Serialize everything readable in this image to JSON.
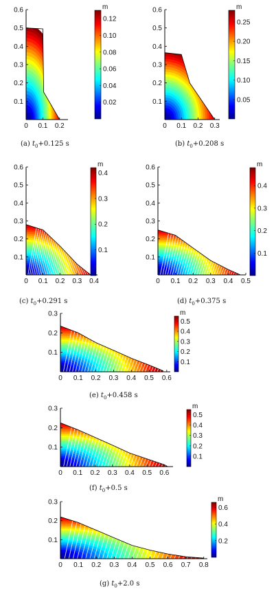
{
  "chart_data": [
    {
      "type": "area",
      "caption": "(a) t0+0.125 s",
      "caption_prefix": "(a)",
      "caption_suffix": "+0.125 s",
      "x_ticks": [
        "0",
        "0.1",
        "0.2"
      ],
      "y_ticks": [
        "0.1",
        "0.2",
        "0.3",
        "0.4",
        "0.5",
        "0.6"
      ],
      "xlim": [
        0,
        0.25
      ],
      "ylim": [
        0,
        0.6
      ],
      "colorbar_label": "m",
      "colorbar_range": [
        0,
        0.13
      ],
      "colorbar_ticks": [
        "0.02",
        "0.04",
        "0.06",
        "0.08",
        "0.10",
        "0.12"
      ],
      "colorbar_tick_values": [
        0.02,
        0.04,
        0.06,
        0.08,
        0.1,
        0.12
      ],
      "outline": [
        [
          0,
          0.5
        ],
        [
          0.1,
          0.495
        ],
        [
          0.105,
          0.15
        ],
        [
          0.2,
          0
        ]
      ],
      "streaks": false
    },
    {
      "type": "area",
      "caption": "(b) t0+0.208 s",
      "caption_prefix": "(b)",
      "caption_suffix": "+0.208 s",
      "x_ticks": [
        "0",
        "0.1",
        "0.2",
        "0.3"
      ],
      "y_ticks": [
        "0.1",
        "0.2",
        "0.3",
        "0.4",
        "0.5",
        "0.6"
      ],
      "xlim": [
        0,
        0.33
      ],
      "ylim": [
        0,
        0.6
      ],
      "colorbar_label": "m",
      "colorbar_range": [
        0,
        0.28
      ],
      "colorbar_ticks": [
        "0.05",
        "0.10",
        "0.15",
        "0.20",
        "0.25"
      ],
      "colorbar_tick_values": [
        0.05,
        0.1,
        0.15,
        0.2,
        0.25
      ],
      "outline": [
        [
          0,
          0.365
        ],
        [
          0.1,
          0.355
        ],
        [
          0.15,
          0.2
        ],
        [
          0.3,
          0
        ]
      ],
      "streaks": false
    },
    {
      "type": "area",
      "caption": "(c) t0+0.291 s",
      "caption_prefix": "(c)",
      "caption_suffix": "+0.291 s",
      "x_ticks": [
        "0",
        "0.1",
        "0.2",
        "0.3",
        "0.4"
      ],
      "y_ticks": [
        "0.1",
        "0.2",
        "0.3",
        "0.4",
        "0.5",
        "0.6"
      ],
      "xlim": [
        0,
        0.42
      ],
      "ylim": [
        0,
        0.6
      ],
      "colorbar_label": "m",
      "colorbar_range": [
        0,
        0.42
      ],
      "colorbar_ticks": [
        "0.1",
        "0.2",
        "0.3",
        "0.4"
      ],
      "colorbar_tick_values": [
        0.1,
        0.2,
        0.3,
        0.4
      ],
      "outline": [
        [
          0,
          0.28
        ],
        [
          0.1,
          0.25
        ],
        [
          0.2,
          0.16
        ],
        [
          0.3,
          0.06
        ],
        [
          0.38,
          0
        ]
      ],
      "streaks": true
    },
    {
      "type": "area",
      "caption": "(d) t0+0.375 s",
      "caption_prefix": "(d)",
      "caption_suffix": "+0.375 s",
      "x_ticks": [
        "0",
        "0.1",
        "0.2",
        "0.3",
        "0.4",
        "0.5"
      ],
      "y_ticks": [
        "0.1",
        "0.2",
        "0.3",
        "0.4",
        "0.5",
        "0.6"
      ],
      "xlim": [
        0,
        0.5
      ],
      "ylim": [
        0,
        0.6
      ],
      "colorbar_label": "m",
      "colorbar_range": [
        0,
        0.48
      ],
      "colorbar_ticks": [
        "0.1",
        "0.2",
        "0.3",
        "0.4"
      ],
      "colorbar_tick_values": [
        0.1,
        0.2,
        0.3,
        0.4
      ],
      "outline": [
        [
          0,
          0.25
        ],
        [
          0.1,
          0.22
        ],
        [
          0.2,
          0.15
        ],
        [
          0.3,
          0.08
        ],
        [
          0.4,
          0.03
        ],
        [
          0.47,
          0
        ]
      ],
      "streaks": true
    },
    {
      "type": "area",
      "caption": "(e) t0+0.458 s",
      "caption_prefix": "(e)",
      "caption_suffix": "+0.458 s",
      "x_ticks": [
        "0",
        "0.1",
        "0.2",
        "0.3",
        "0.4",
        "0.5",
        "0.6"
      ],
      "y_ticks": [
        "0.1",
        "0.2",
        "0.3"
      ],
      "xlim": [
        0,
        0.62
      ],
      "ylim": [
        0,
        0.3
      ],
      "colorbar_label": "m",
      "colorbar_range": [
        0,
        0.55
      ],
      "colorbar_ticks": [
        "0.1",
        "0.2",
        "0.3",
        "0.4",
        "0.5"
      ],
      "colorbar_tick_values": [
        0.1,
        0.2,
        0.3,
        0.4,
        0.5
      ],
      "outline": [
        [
          0,
          0.235
        ],
        [
          0.1,
          0.2
        ],
        [
          0.2,
          0.15
        ],
        [
          0.3,
          0.11
        ],
        [
          0.4,
          0.07
        ],
        [
          0.5,
          0.035
        ],
        [
          0.58,
          0.005
        ]
      ],
      "streaks": true
    },
    {
      "type": "area",
      "caption": "(f) t0+0.5 s",
      "caption_prefix": "(f)",
      "caption_suffix": "+0.5 s",
      "x_ticks": [
        "0",
        "0.1",
        "0.2",
        "0.3",
        "0.4",
        "0.5",
        "0.6"
      ],
      "y_ticks": [
        "0.1",
        "0.2",
        "0.3"
      ],
      "xlim": [
        0,
        0.65
      ],
      "ylim": [
        0,
        0.3
      ],
      "colorbar_label": "m",
      "colorbar_range": [
        0,
        0.55
      ],
      "colorbar_ticks": [
        "0.1",
        "0.2",
        "0.3",
        "0.4",
        "0.5"
      ],
      "colorbar_tick_values": [
        0.1,
        0.2,
        0.3,
        0.4,
        0.5
      ],
      "outline": [
        [
          0,
          0.225
        ],
        [
          0.1,
          0.19
        ],
        [
          0.2,
          0.15
        ],
        [
          0.3,
          0.11
        ],
        [
          0.4,
          0.07
        ],
        [
          0.5,
          0.04
        ],
        [
          0.6,
          0.01
        ],
        [
          0.62,
          0
        ]
      ],
      "streaks": true
    },
    {
      "type": "area",
      "caption": "(g) t0+2.0 s",
      "caption_prefix": "(g)",
      "caption_suffix": "+2.0 s",
      "x_ticks": [
        "0",
        "0.1",
        "0.2",
        "0.3",
        "0.4",
        "0.5",
        "0.6",
        "0.7",
        "0.8"
      ],
      "y_ticks": [
        "0.1",
        "0.2",
        "0.3"
      ],
      "xlim": [
        0,
        0.82
      ],
      "ylim": [
        0,
        0.3
      ],
      "colorbar_label": "m",
      "colorbar_range": [
        0,
        0.66
      ],
      "colorbar_ticks": [
        "0.2",
        "0.4",
        "0.6"
      ],
      "colorbar_tick_values": [
        0.2,
        0.4,
        0.6
      ],
      "outline": [
        [
          0,
          0.22
        ],
        [
          0.1,
          0.19
        ],
        [
          0.2,
          0.15
        ],
        [
          0.3,
          0.11
        ],
        [
          0.4,
          0.07
        ],
        [
          0.5,
          0.045
        ],
        [
          0.6,
          0.025
        ],
        [
          0.7,
          0.01
        ],
        [
          0.8,
          0.003
        ]
      ],
      "streaks": true
    }
  ]
}
